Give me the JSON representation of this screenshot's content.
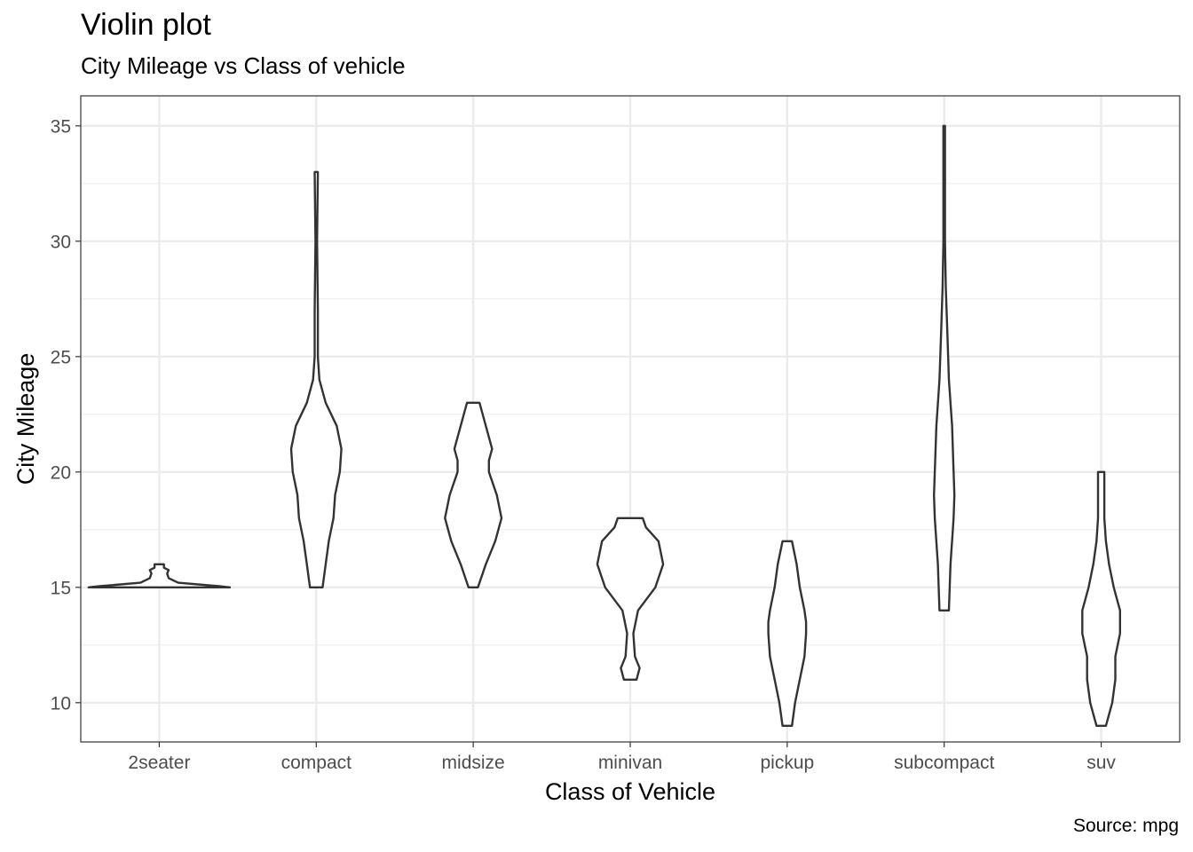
{
  "chart_data": {
    "type": "violin",
    "title": "Violin plot",
    "subtitle": "City Mileage vs Class of vehicle",
    "xlabel": "Class of Vehicle",
    "ylabel": "City Mileage",
    "caption": "Source: mpg",
    "ylim": [
      8.3,
      36.3
    ],
    "yticks": [
      10,
      15,
      20,
      25,
      30,
      35
    ],
    "categories": [
      "2seater",
      "compact",
      "midsize",
      "minivan",
      "pickup",
      "subcompact",
      "suv"
    ],
    "grid": true,
    "violins": [
      {
        "category": "2seater",
        "min": 15,
        "max": 16,
        "profile": [
          [
            15,
            0.45
          ],
          [
            15.05,
            0.38
          ],
          [
            15.2,
            0.12
          ],
          [
            15.4,
            0.06
          ],
          [
            15.6,
            0.05
          ],
          [
            15.75,
            0.06
          ],
          [
            15.85,
            0.03
          ],
          [
            16,
            0.03
          ]
        ]
      },
      {
        "category": "compact",
        "min": 15,
        "max": 33,
        "profile": [
          [
            15,
            0.04
          ],
          [
            16,
            0.06
          ],
          [
            17,
            0.08
          ],
          [
            18,
            0.11
          ],
          [
            19,
            0.12
          ],
          [
            20,
            0.15
          ],
          [
            21,
            0.16
          ],
          [
            22,
            0.13
          ],
          [
            23,
            0.06
          ],
          [
            24,
            0.02
          ],
          [
            25,
            0.01
          ],
          [
            27,
            0.01
          ],
          [
            30,
            0.005
          ],
          [
            33,
            0.01
          ]
        ]
      },
      {
        "category": "midsize",
        "min": 15,
        "max": 23,
        "profile": [
          [
            15,
            0.03
          ],
          [
            16,
            0.08
          ],
          [
            17,
            0.14
          ],
          [
            18,
            0.18
          ],
          [
            19,
            0.15
          ],
          [
            20,
            0.1
          ],
          [
            20.5,
            0.1
          ],
          [
            21,
            0.12
          ],
          [
            22,
            0.08
          ],
          [
            23,
            0.04
          ]
        ]
      },
      {
        "category": "minivan",
        "min": 11,
        "max": 18,
        "profile": [
          [
            11,
            0.04
          ],
          [
            11.5,
            0.06
          ],
          [
            12,
            0.03
          ],
          [
            13,
            0.02
          ],
          [
            14,
            0.05
          ],
          [
            15,
            0.16
          ],
          [
            16,
            0.21
          ],
          [
            17,
            0.18
          ],
          [
            17.6,
            0.1
          ],
          [
            18,
            0.08
          ]
        ]
      },
      {
        "category": "pickup",
        "min": 9,
        "max": 17,
        "profile": [
          [
            9,
            0.03
          ],
          [
            10,
            0.05
          ],
          [
            11,
            0.08
          ],
          [
            12,
            0.11
          ],
          [
            13,
            0.12
          ],
          [
            13.5,
            0.12
          ],
          [
            14,
            0.11
          ],
          [
            15,
            0.08
          ],
          [
            16,
            0.06
          ],
          [
            17,
            0.03
          ]
        ]
      },
      {
        "category": "subcompact",
        "min": 14,
        "max": 35,
        "profile": [
          [
            14,
            0.03
          ],
          [
            16,
            0.04
          ],
          [
            18,
            0.06
          ],
          [
            19,
            0.065
          ],
          [
            20,
            0.06
          ],
          [
            22,
            0.05
          ],
          [
            24,
            0.03
          ],
          [
            26,
            0.02
          ],
          [
            28,
            0.01
          ],
          [
            30,
            0.005
          ],
          [
            33,
            0.005
          ],
          [
            35,
            0.005
          ]
        ]
      },
      {
        "category": "suv",
        "min": 9,
        "max": 20,
        "profile": [
          [
            9,
            0.03
          ],
          [
            10,
            0.07
          ],
          [
            11,
            0.09
          ],
          [
            12,
            0.09
          ],
          [
            13,
            0.12
          ],
          [
            14,
            0.12
          ],
          [
            15,
            0.08
          ],
          [
            16,
            0.05
          ],
          [
            17,
            0.03
          ],
          [
            18,
            0.02
          ],
          [
            19,
            0.02
          ],
          [
            20,
            0.02
          ]
        ]
      }
    ]
  }
}
